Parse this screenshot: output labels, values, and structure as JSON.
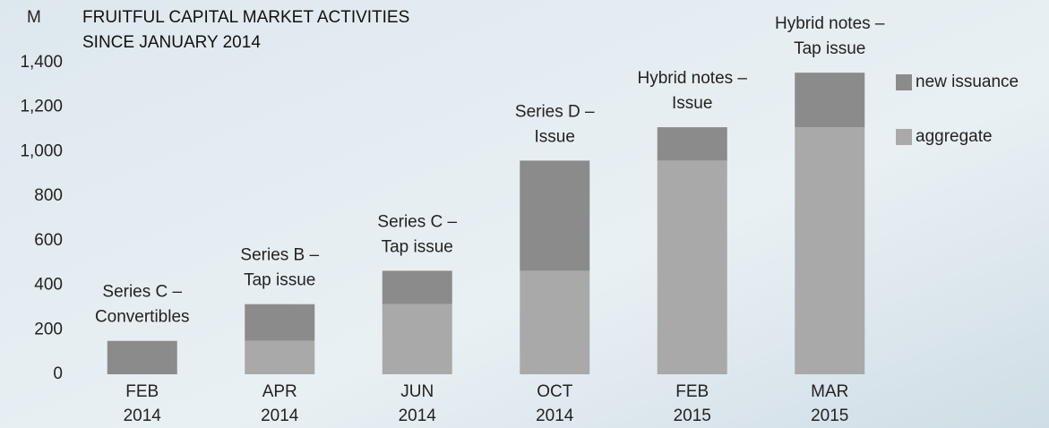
{
  "chart_data": {
    "type": "stacked_bar",
    "title": [
      "FRUITFUL CAPITAL MARKET ACTIVITIES",
      "SINCE JANUARY 2014"
    ],
    "y_label": "M",
    "categories": [
      "FEB 2014",
      "APR 2014",
      "JUN 2014",
      "OCT 2014",
      "FEB 2015",
      "MAR 2015"
    ],
    "annotations": [
      [
        "Series C –",
        "Convertibles"
      ],
      [
        "Series B –",
        "Tap issue"
      ],
      [
        "Series C –",
        "Tap issue"
      ],
      [
        "Series D –",
        "Issue"
      ],
      [
        "Hybrid notes –",
        "Issue"
      ],
      [
        "Hybrid notes –",
        "Tap issue"
      ]
    ],
    "series": [
      {
        "name": "aggregate",
        "color": "#a9a9a9",
        "values": [
          0,
          150,
          315,
          465,
          960,
          1110
        ]
      },
      {
        "name": "new issuance",
        "color": "#8b8b8b",
        "values": [
          150,
          165,
          150,
          495,
          150,
          245
        ]
      }
    ],
    "ylim": [
      0,
      1400
    ],
    "yticks": [
      0,
      200,
      400,
      600,
      800,
      {
        "value": 1000,
        "label": "1,000"
      },
      {
        "value": 1200,
        "label": "1,200"
      },
      {
        "value": 1400,
        "label": "1,400"
      }
    ],
    "grid": false
  }
}
